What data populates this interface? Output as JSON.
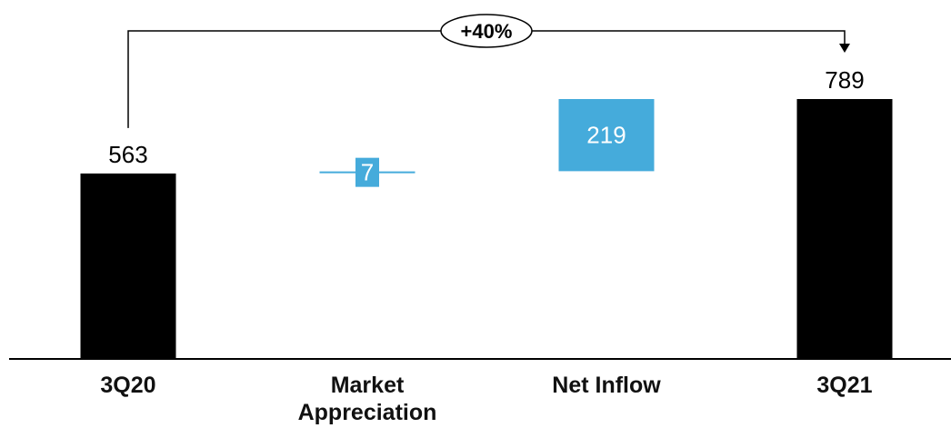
{
  "chart_data": {
    "type": "waterfall",
    "categories": [
      "3Q20",
      "Market Appreciation",
      "Net Inflow",
      "3Q21"
    ],
    "steps": [
      {
        "category": "3Q20",
        "kind": "total",
        "value": 563,
        "label": "563"
      },
      {
        "category": "Market Appreciation",
        "kind": "delta",
        "value": 7,
        "label": "7"
      },
      {
        "category": "Net Inflow",
        "kind": "delta",
        "value": 219,
        "label": "219"
      },
      {
        "category": "3Q21",
        "kind": "total",
        "value": 789,
        "label": "789"
      }
    ],
    "growth_annotation": {
      "from": "3Q20",
      "to": "3Q21",
      "label": "+40%"
    },
    "ylim": [
      0,
      789
    ],
    "grid": false,
    "colors": {
      "total": "#000000",
      "delta": "#45abdb",
      "axis": "#000000"
    }
  }
}
